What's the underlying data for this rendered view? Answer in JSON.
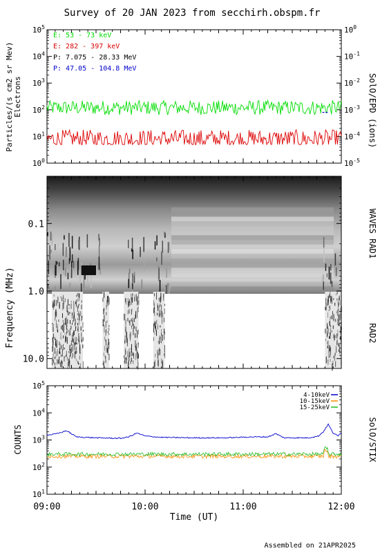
{
  "title": "Survey of 20 JAN 2023 from secchirh.obspm.fr",
  "footer": "Assembled on 21APR2025",
  "colors": {
    "e_low": "#00dd00",
    "e_high": "#dd0000",
    "p_low": "#000000",
    "p_high": "#0000cc",
    "stix_4_10": "#0000cc",
    "stix_10_15": "#ff8c00",
    "stix_15_25": "#22bb22"
  },
  "chart_data": [
    {
      "panel": "epd",
      "type": "line",
      "ylabel": "Particles/(s cm2 sr Mev)",
      "ylabel2": "Electrons",
      "right_label": "SolO/EPD (ions)",
      "y_scale": "log",
      "ylim": [
        1,
        100000
      ],
      "yticks": [
        "10^0",
        "10^1",
        "10^2",
        "10^3",
        "10^4",
        "10^5"
      ],
      "y2_scale": "log",
      "y2lim": [
        1e-05,
        1
      ],
      "y2ticks": [
        "10^-5",
        "10^-4",
        "10^-3",
        "10^-2",
        "10^-1",
        "10^0"
      ],
      "legend": [
        "E: 53 - 73 keV",
        "E: 282 - 397 keV",
        "P: 7.075 - 28.33 MeV",
        "P: 47.05 - 104.8 MeV"
      ],
      "series": [
        {
          "name": "E: 53 - 73 keV",
          "color": "#00dd00",
          "typical": 120,
          "range": [
            40,
            300
          ]
        },
        {
          "name": "E: 282 - 397 keV",
          "color": "#dd0000",
          "typical": 8,
          "range": [
            5,
            25
          ]
        },
        {
          "name": "P: 47.05 - 104.8 MeV",
          "color": "#0000cc",
          "points": [
            {
              "x": "11:49",
              "y": 0.0008
            },
            {
              "x": "11:51",
              "y": 0.0008
            }
          ]
        }
      ]
    },
    {
      "panel": "waves",
      "type": "heatmap",
      "ylabel": "Frequency (MHz)",
      "right_label_1": "WAVES RAD1",
      "right_label_2": "RAD2",
      "y_scale": "log",
      "ylim": [
        0.02,
        14
      ],
      "yticks": [
        "0.1",
        "1.0",
        "10.0"
      ],
      "rad2_data_intervals": [
        [
          "09:03",
          "09:22"
        ],
        [
          "09:34",
          "09:38"
        ],
        [
          "09:47",
          "09:56"
        ],
        [
          "10:05",
          "10:12"
        ],
        [
          "11:50",
          "12:00"
        ]
      ]
    },
    {
      "panel": "stix",
      "type": "line",
      "ylabel": "COUNTS",
      "right_label": "SolO/STIX",
      "y_scale": "log",
      "ylim": [
        10,
        100000
      ],
      "yticks": [
        "10^1",
        "10^2",
        "10^3",
        "10^4",
        "10^5"
      ],
      "legend": [
        "4-10keV",
        "10-15keV",
        "15-25keV"
      ],
      "series": [
        {
          "name": "4-10keV",
          "color": "#0000cc",
          "points": [
            [
              "09:00",
              1500
            ],
            [
              "09:06",
              1700
            ],
            [
              "09:12",
              2200
            ],
            [
              "09:18",
              1300
            ],
            [
              "09:30",
              1200
            ],
            [
              "09:45",
              1150
            ],
            [
              "09:50",
              1300
            ],
            [
              "09:55",
              1800
            ],
            [
              "10:00",
              1400
            ],
            [
              "10:10",
              1250
            ],
            [
              "10:30",
              1200
            ],
            [
              "10:50",
              1200
            ],
            [
              "11:05",
              1300
            ],
            [
              "11:15",
              1300
            ],
            [
              "11:20",
              1700
            ],
            [
              "11:25",
              1200
            ],
            [
              "11:40",
              1200
            ],
            [
              "11:46",
              1400
            ],
            [
              "11:49",
              2000
            ],
            [
              "11:52",
              3800
            ],
            [
              "11:55",
              1800
            ],
            [
              "11:58",
              1400
            ],
            [
              "12:00",
              1900
            ]
          ]
        },
        {
          "name": "10-15keV",
          "color": "#ff8c00",
          "typical": 250
        },
        {
          "name": "15-25keV",
          "color": "#22bb22",
          "typical": 300
        }
      ],
      "xticks": [
        "09:00",
        "10:00",
        "11:00",
        "12:00"
      ],
      "xlabel": "Time (UT)",
      "xlim": [
        "09:00",
        "12:00"
      ]
    }
  ]
}
